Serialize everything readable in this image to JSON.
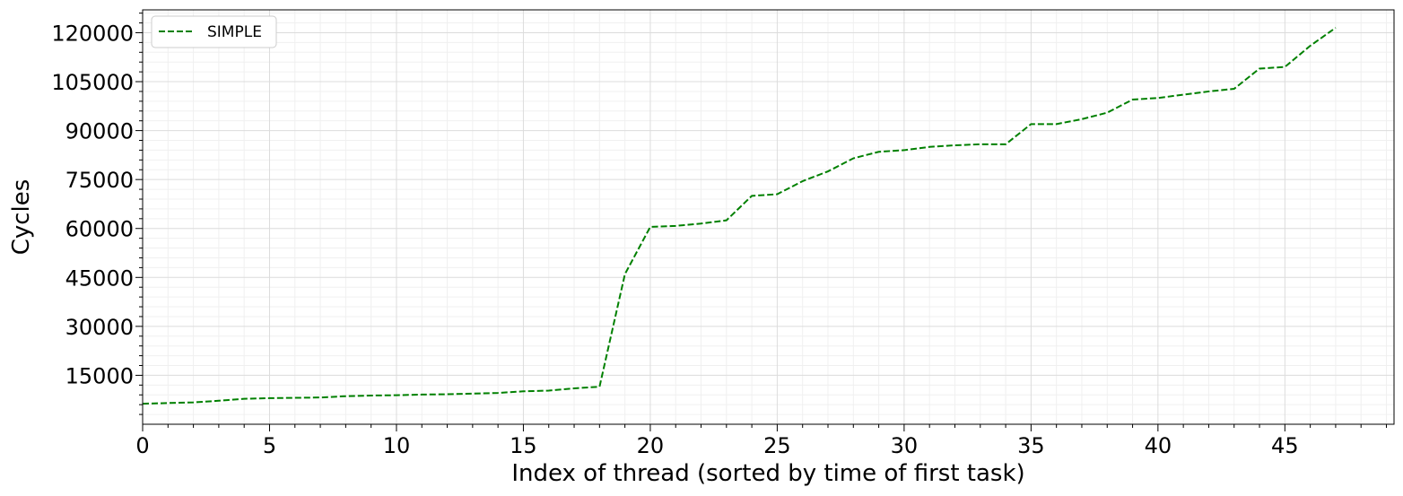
{
  "chart_data": {
    "type": "line",
    "title": "",
    "xlabel": "Index of thread (sorted by time of first task)",
    "ylabel": "Cycles",
    "xlim": [
      0,
      49.3
    ],
    "ylim": [
      0,
      127000
    ],
    "xticks": [
      0,
      5,
      10,
      15,
      20,
      25,
      30,
      35,
      40,
      45
    ],
    "yticks": [
      15000,
      30000,
      45000,
      60000,
      75000,
      90000,
      105000,
      120000
    ],
    "grid": true,
    "minor_grid": true,
    "legend_position": "top-left",
    "x": [
      0,
      1,
      2,
      3,
      4,
      5,
      6,
      7,
      8,
      9,
      10,
      11,
      12,
      13,
      14,
      15,
      16,
      17,
      18,
      19,
      20,
      21,
      22,
      23,
      24,
      25,
      26,
      27,
      28,
      29,
      30,
      31,
      32,
      33,
      34,
      35,
      36,
      37,
      38,
      39,
      40,
      41,
      42,
      43,
      44,
      45,
      46,
      47
    ],
    "series": [
      {
        "name": "SIMPLE",
        "color": "#008000",
        "line_style": "dashed",
        "values": [
          6300,
          6500,
          6700,
          7200,
          7800,
          8000,
          8100,
          8200,
          8600,
          8800,
          8900,
          9100,
          9200,
          9400,
          9600,
          10100,
          10300,
          11000,
          11500,
          46000,
          60500,
          60800,
          61500,
          62500,
          70000,
          70500,
          74500,
          77500,
          81500,
          83500,
          84000,
          85000,
          85500,
          85800,
          85800,
          92000,
          92000,
          93500,
          95500,
          99500,
          100000,
          101000,
          102000,
          102800,
          109000,
          109500,
          116000,
          121500
        ]
      }
    ]
  }
}
